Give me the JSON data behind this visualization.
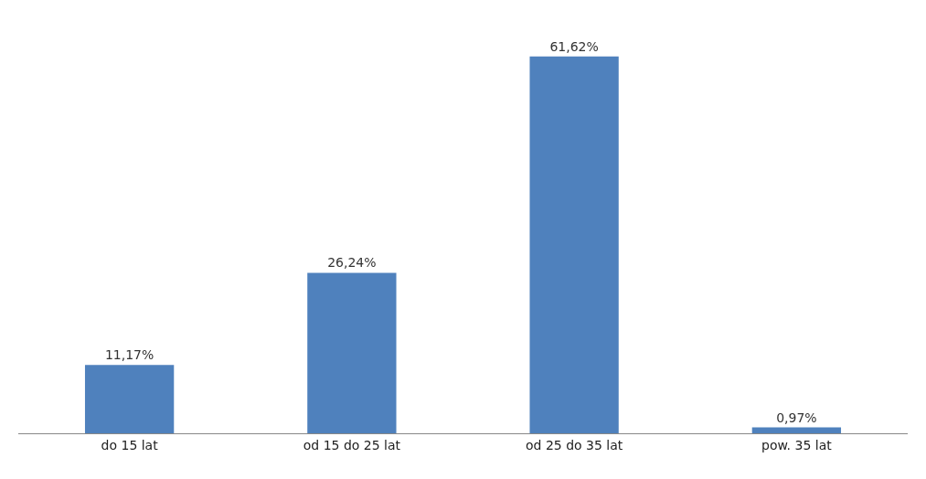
{
  "chart_data": {
    "type": "bar",
    "categories": [
      "do 15 lat",
      "od 15 do 25 lat",
      "od 25 do 35 lat",
      "pow. 35 lat"
    ],
    "values": [
      11.17,
      26.24,
      61.62,
      0.97
    ],
    "value_labels": [
      "11,17%",
      "26,24%",
      "61,62%",
      "0,97%"
    ],
    "color": "#4f81bd"
  }
}
